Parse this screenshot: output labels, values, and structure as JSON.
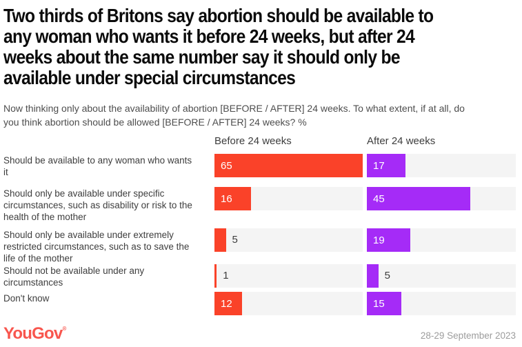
{
  "title_lines": [
    "Two thirds of Britons say abortion should be available to",
    "any woman who wants it before 24 weeks, but after 24",
    "weeks about the same number say it should only be",
    "available under special circumstances"
  ],
  "subtitle_lines": [
    "Now thinking only about the availability of abortion [BEFORE / AFTER] 24 weeks. To what extent, if at all, do",
    "you think abortion should be allowed [BEFORE / AFTER] 24 weeks? %"
  ],
  "chart_data": {
    "type": "bar",
    "orientation": "horizontal",
    "columns": [
      "Before 24 weeks",
      "After 24 weeks"
    ],
    "categories": [
      "Should be available to any woman who wants it",
      "Should only be available under specific circumstances, such as disability or risk to the health of the mother",
      "Should only be available under extremely restricted circumstances, such as to save the life of the mother",
      "Should not be available under any circumstances",
      "Don't know"
    ],
    "series": [
      {
        "name": "Before 24 weeks",
        "values": [
          65,
          16,
          5,
          1,
          12
        ]
      },
      {
        "name": "After 24 weeks",
        "values": [
          17,
          45,
          19,
          5,
          15
        ]
      }
    ],
    "value_unit": "%",
    "scale_max": 65,
    "grid": false,
    "colors": {
      "before_bar": "#FA4229",
      "after_bar": "#A52BF7",
      "track": "#F4F4F4",
      "value_inside": "#FFFFFF",
      "value_outside": "#3D3D3D"
    }
  },
  "footer": {
    "logo_text": "YouGov",
    "logo_mark": "®",
    "logo_color": "#F8564E",
    "date": "28-29 September 2023"
  }
}
